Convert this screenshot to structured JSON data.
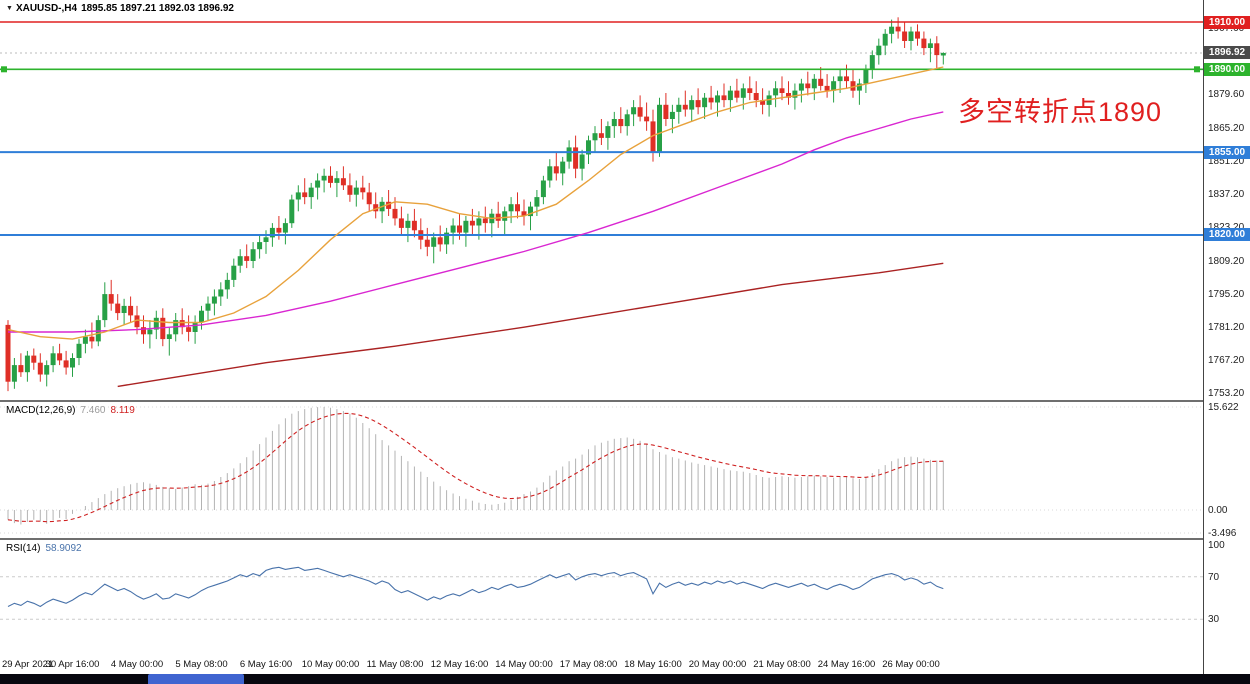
{
  "header": {
    "symbol": "XAUUSD-,H4",
    "ohlc": "1895.85 1897.21 1892.03 1896.92"
  },
  "annotation": {
    "text": "多空转折点1890",
    "color": "#e01f1f"
  },
  "current_price": {
    "price": 1896.92,
    "label": "1896.92",
    "badge_color": "#4a4a4a"
  },
  "levels": [
    {
      "price": 1910.0,
      "label": "1910.00",
      "color": "#e02020",
      "width": 1.4,
      "handles": false
    },
    {
      "price": 1890.0,
      "label": "1890.00",
      "color": "#2db32d",
      "width": 1.6,
      "handles": true
    },
    {
      "price": 1855.0,
      "label": "1855.00",
      "color": "#2f7ed8",
      "width": 2.0,
      "handles": false
    },
    {
      "price": 1820.0,
      "label": "1820.00",
      "color": "#2f7ed8",
      "width": 2.0,
      "handles": false
    }
  ],
  "price_axis_ticks": [
    "1907.60",
    "1879.60",
    "1865.20",
    "1851.20",
    "1837.20",
    "1823.20",
    "1809.20",
    "1795.20",
    "1781.20",
    "1767.20",
    "1753.20"
  ],
  "macd_panel": {
    "title": "MACD(12,26,9)",
    "value_main": "7.460",
    "value_signal": "8.119",
    "axis": [
      {
        "label": "15.622",
        "value": 15.622
      },
      {
        "label": "0.00",
        "value": 0
      },
      {
        "label": "-3.496",
        "value": -3.496
      }
    ],
    "max": 15.622,
    "min": -3.496
  },
  "rsi_panel": {
    "title": "RSI(14)",
    "value": "58.9092",
    "axis": [
      {
        "label": "100",
        "value": 100
      },
      {
        "label": "70",
        "value": 70
      },
      {
        "label": "30",
        "value": 30
      }
    ],
    "level_lines": [
      70,
      30
    ]
  },
  "time_axis": [
    {
      "label": "29 Apr 2021",
      "bar": 0
    },
    {
      "label": "30 Apr 16:00",
      "bar": 10
    },
    {
      "label": "4 May 00:00",
      "bar": 20
    },
    {
      "label": "5 May 08:00",
      "bar": 30
    },
    {
      "label": "6 May 16:00",
      "bar": 40
    },
    {
      "label": "10 May 00:00",
      "bar": 50
    },
    {
      "label": "11 May 08:00",
      "bar": 60
    },
    {
      "label": "12 May 16:00",
      "bar": 70
    },
    {
      "label": "14 May 00:00",
      "bar": 80
    },
    {
      "label": "17 May 08:00",
      "bar": 90
    },
    {
      "label": "18 May 16:00",
      "bar": 100
    },
    {
      "label": "20 May 00:00",
      "bar": 110
    },
    {
      "label": "21 May 08:00",
      "bar": 120
    },
    {
      "label": "24 May 16:00",
      "bar": 130
    },
    {
      "label": "26 May 00:00",
      "bar": 140
    }
  ],
  "chart_data": {
    "type": "candlestick",
    "symbol": "XAUUSD",
    "timeframe": "H4",
    "title": "XAUUSD-,H4",
    "visible_price_range": [
      1753.2,
      1910.0
    ],
    "candles": [
      [
        1782,
        1784,
        1754,
        1758
      ],
      [
        1758,
        1768,
        1755,
        1765
      ],
      [
        1765,
        1770,
        1760,
        1762
      ],
      [
        1762,
        1771,
        1758,
        1769
      ],
      [
        1769,
        1772,
        1763,
        1766
      ],
      [
        1766,
        1770,
        1758,
        1761
      ],
      [
        1761,
        1767,
        1756,
        1765
      ],
      [
        1765,
        1773,
        1762,
        1770
      ],
      [
        1770,
        1774,
        1765,
        1767
      ],
      [
        1767,
        1771,
        1761,
        1764
      ],
      [
        1764,
        1770,
        1760,
        1768
      ],
      [
        1768,
        1776,
        1765,
        1774
      ],
      [
        1774,
        1780,
        1770,
        1777
      ],
      [
        1777,
        1783,
        1772,
        1775
      ],
      [
        1775,
        1786,
        1773,
        1784
      ],
      [
        1784,
        1800,
        1781,
        1795
      ],
      [
        1795,
        1801,
        1788,
        1791
      ],
      [
        1791,
        1795,
        1784,
        1787
      ],
      [
        1787,
        1793,
        1782,
        1790
      ],
      [
        1790,
        1794,
        1783,
        1786
      ],
      [
        1786,
        1790,
        1778,
        1781
      ],
      [
        1781,
        1786,
        1774,
        1778
      ],
      [
        1778,
        1784,
        1772,
        1780
      ],
      [
        1780,
        1788,
        1776,
        1785
      ],
      [
        1785,
        1789,
        1773,
        1776
      ],
      [
        1776,
        1781,
        1769,
        1778
      ],
      [
        1778,
        1787,
        1775,
        1784
      ],
      [
        1784,
        1789,
        1778,
        1781
      ],
      [
        1781,
        1786,
        1775,
        1779
      ],
      [
        1779,
        1786,
        1774,
        1783
      ],
      [
        1783,
        1790,
        1780,
        1788
      ],
      [
        1788,
        1794,
        1784,
        1791
      ],
      [
        1791,
        1797,
        1786,
        1794
      ],
      [
        1794,
        1800,
        1790,
        1797
      ],
      [
        1797,
        1804,
        1793,
        1801
      ],
      [
        1801,
        1810,
        1798,
        1807
      ],
      [
        1807,
        1814,
        1804,
        1811
      ],
      [
        1811,
        1816,
        1806,
        1809
      ],
      [
        1809,
        1817,
        1806,
        1814
      ],
      [
        1814,
        1820,
        1810,
        1817
      ],
      [
        1817,
        1822,
        1812,
        1819
      ],
      [
        1819,
        1825,
        1815,
        1823
      ],
      [
        1823,
        1828,
        1818,
        1821
      ],
      [
        1821,
        1827,
        1816,
        1825
      ],
      [
        1825,
        1837,
        1823,
        1835
      ],
      [
        1835,
        1841,
        1830,
        1838
      ],
      [
        1838,
        1844,
        1833,
        1836
      ],
      [
        1836,
        1842,
        1831,
        1840
      ],
      [
        1840,
        1846,
        1835,
        1843
      ],
      [
        1843,
        1848,
        1838,
        1845
      ],
      [
        1845,
        1849,
        1840,
        1842
      ],
      [
        1842,
        1847,
        1836,
        1844
      ],
      [
        1844,
        1849,
        1839,
        1841
      ],
      [
        1841,
        1846,
        1834,
        1837
      ],
      [
        1837,
        1843,
        1832,
        1840
      ],
      [
        1840,
        1845,
        1835,
        1838
      ],
      [
        1838,
        1842,
        1830,
        1833
      ],
      [
        1833,
        1838,
        1827,
        1830
      ],
      [
        1830,
        1836,
        1825,
        1834
      ],
      [
        1834,
        1839,
        1828,
        1831
      ],
      [
        1831,
        1836,
        1824,
        1827
      ],
      [
        1827,
        1832,
        1820,
        1823
      ],
      [
        1823,
        1829,
        1817,
        1826
      ],
      [
        1826,
        1831,
        1819,
        1822
      ],
      [
        1822,
        1827,
        1814,
        1818
      ],
      [
        1818,
        1823,
        1811,
        1815
      ],
      [
        1815,
        1821,
        1808,
        1819
      ],
      [
        1819,
        1824,
        1813,
        1816
      ],
      [
        1816,
        1823,
        1812,
        1821
      ],
      [
        1821,
        1827,
        1816,
        1824
      ],
      [
        1824,
        1829,
        1818,
        1821
      ],
      [
        1821,
        1828,
        1815,
        1826
      ],
      [
        1826,
        1831,
        1820,
        1824
      ],
      [
        1824,
        1830,
        1818,
        1827
      ],
      [
        1827,
        1832,
        1821,
        1825
      ],
      [
        1825,
        1831,
        1819,
        1829
      ],
      [
        1829,
        1834,
        1823,
        1826
      ],
      [
        1826,
        1832,
        1820,
        1830
      ],
      [
        1830,
        1836,
        1825,
        1833
      ],
      [
        1833,
        1838,
        1827,
        1830
      ],
      [
        1830,
        1835,
        1824,
        1828
      ],
      [
        1828,
        1834,
        1822,
        1832
      ],
      [
        1832,
        1839,
        1828,
        1836
      ],
      [
        1836,
        1845,
        1833,
        1843
      ],
      [
        1843,
        1852,
        1840,
        1849
      ],
      [
        1849,
        1855,
        1843,
        1846
      ],
      [
        1846,
        1853,
        1841,
        1851
      ],
      [
        1851,
        1860,
        1848,
        1857
      ],
      [
        1857,
        1862,
        1844,
        1848
      ],
      [
        1848,
        1856,
        1843,
        1854
      ],
      [
        1854,
        1862,
        1850,
        1860
      ],
      [
        1860,
        1866,
        1855,
        1863
      ],
      [
        1863,
        1869,
        1858,
        1861
      ],
      [
        1861,
        1868,
        1856,
        1866
      ],
      [
        1866,
        1872,
        1861,
        1869
      ],
      [
        1869,
        1874,
        1863,
        1866
      ],
      [
        1866,
        1873,
        1862,
        1871
      ],
      [
        1871,
        1877,
        1866,
        1874
      ],
      [
        1874,
        1879,
        1868,
        1870
      ],
      [
        1870,
        1876,
        1864,
        1868
      ],
      [
        1868,
        1873,
        1851,
        1855
      ],
      [
        1855,
        1878,
        1853,
        1875
      ],
      [
        1875,
        1880,
        1866,
        1869
      ],
      [
        1869,
        1875,
        1863,
        1872
      ],
      [
        1872,
        1878,
        1867,
        1875
      ],
      [
        1875,
        1881,
        1870,
        1873
      ],
      [
        1873,
        1879,
        1868,
        1877
      ],
      [
        1877,
        1882,
        1871,
        1874
      ],
      [
        1874,
        1880,
        1869,
        1878
      ],
      [
        1878,
        1883,
        1873,
        1876
      ],
      [
        1876,
        1881,
        1870,
        1879
      ],
      [
        1879,
        1884,
        1874,
        1877
      ],
      [
        1877,
        1883,
        1872,
        1881
      ],
      [
        1881,
        1886,
        1876,
        1878
      ],
      [
        1878,
        1884,
        1873,
        1882
      ],
      [
        1882,
        1887,
        1877,
        1880
      ],
      [
        1880,
        1885,
        1874,
        1877
      ],
      [
        1877,
        1882,
        1871,
        1875
      ],
      [
        1875,
        1881,
        1870,
        1879
      ],
      [
        1879,
        1885,
        1874,
        1882
      ],
      [
        1882,
        1887,
        1877,
        1880
      ],
      [
        1880,
        1885,
        1875,
        1878
      ],
      [
        1878,
        1884,
        1873,
        1881
      ],
      [
        1881,
        1886,
        1876,
        1884
      ],
      [
        1884,
        1889,
        1879,
        1882
      ],
      [
        1882,
        1888,
        1877,
        1886
      ],
      [
        1886,
        1891,
        1881,
        1883
      ],
      [
        1883,
        1888,
        1878,
        1881
      ],
      [
        1881,
        1887,
        1876,
        1885
      ],
      [
        1885,
        1890,
        1880,
        1887
      ],
      [
        1887,
        1892,
        1882,
        1885
      ],
      [
        1885,
        1890,
        1878,
        1881
      ],
      [
        1881,
        1886,
        1875,
        1884
      ],
      [
        1884,
        1892,
        1880,
        1890
      ],
      [
        1890,
        1898,
        1886,
        1896
      ],
      [
        1896,
        1903,
        1892,
        1900
      ],
      [
        1900,
        1907,
        1896,
        1905
      ],
      [
        1905,
        1911,
        1901,
        1908
      ],
      [
        1908,
        1912,
        1903,
        1906
      ],
      [
        1906,
        1910,
        1899,
        1902
      ],
      [
        1902,
        1908,
        1898,
        1906
      ],
      [
        1906,
        1909,
        1900,
        1903
      ],
      [
        1903,
        1906,
        1896,
        1899
      ],
      [
        1899,
        1903,
        1893,
        1901
      ],
      [
        1901,
        1904,
        1890,
        1896
      ],
      [
        1895.85,
        1897.21,
        1892.03,
        1896.92
      ]
    ],
    "ma_orange": [
      [
        0,
        1780
      ],
      [
        5,
        1777
      ],
      [
        10,
        1776
      ],
      [
        15,
        1779
      ],
      [
        20,
        1784
      ],
      [
        25,
        1783
      ],
      [
        30,
        1783
      ],
      [
        35,
        1787
      ],
      [
        40,
        1794
      ],
      [
        45,
        1805
      ],
      [
        50,
        1818
      ],
      [
        55,
        1829
      ],
      [
        60,
        1834
      ],
      [
        65,
        1833
      ],
      [
        70,
        1829
      ],
      [
        75,
        1827
      ],
      [
        80,
        1828
      ],
      [
        85,
        1833
      ],
      [
        90,
        1843
      ],
      [
        95,
        1854
      ],
      [
        100,
        1862
      ],
      [
        105,
        1867
      ],
      [
        110,
        1872
      ],
      [
        115,
        1876
      ],
      [
        120,
        1878
      ],
      [
        125,
        1880
      ],
      [
        130,
        1882
      ],
      [
        135,
        1885
      ],
      [
        140,
        1888
      ],
      [
        145,
        1891
      ]
    ],
    "ma_magenta": [
      [
        0,
        1779
      ],
      [
        10,
        1779
      ],
      [
        20,
        1780
      ],
      [
        30,
        1782
      ],
      [
        40,
        1786
      ],
      [
        50,
        1792
      ],
      [
        60,
        1799
      ],
      [
        70,
        1806
      ],
      [
        80,
        1813
      ],
      [
        90,
        1821
      ],
      [
        100,
        1830
      ],
      [
        110,
        1840
      ],
      [
        120,
        1850
      ],
      [
        125,
        1856
      ],
      [
        130,
        1861
      ],
      [
        135,
        1865
      ],
      [
        140,
        1869
      ],
      [
        145,
        1872
      ]
    ],
    "ma_darkred": [
      [
        17,
        1756
      ],
      [
        40,
        1766
      ],
      [
        60,
        1773
      ],
      [
        80,
        1781
      ],
      [
        100,
        1790
      ],
      [
        120,
        1799
      ],
      [
        135,
        1804
      ],
      [
        145,
        1808
      ]
    ],
    "macd": [
      -1.5,
      -2.0,
      -2.2,
      -1.8,
      -1.5,
      -1.8,
      -2.1,
      -1.6,
      -1.2,
      -1.4,
      -0.6,
      0.0,
      0.6,
      1.2,
      1.8,
      2.4,
      2.9,
      3.3,
      3.6,
      3.9,
      4.1,
      4.2,
      4.0,
      3.8,
      3.5,
      3.3,
      3.2,
      3.4,
      3.6,
      3.9,
      3.8,
      4.0,
      4.4,
      5.0,
      5.6,
      6.3,
      7.1,
      8.0,
      9.0,
      10.0,
      11.0,
      12.0,
      13.0,
      13.9,
      14.6,
      15.0,
      15.3,
      15.5,
      15.6,
      15.622,
      15.5,
      15.3,
      15.0,
      14.6,
      14.0,
      13.2,
      12.4,
      11.5,
      10.6,
      9.8,
      9.0,
      8.2,
      7.4,
      6.6,
      5.8,
      5.0,
      4.3,
      3.6,
      3.0,
      2.5,
      2.1,
      1.7,
      1.4,
      1.1,
      0.9,
      0.8,
      0.9,
      1.1,
      1.5,
      2.0,
      2.4,
      2.8,
      3.4,
      4.2,
      5.2,
      6.0,
      6.6,
      7.4,
      7.8,
      8.4,
      9.2,
      9.8,
      10.2,
      10.5,
      10.8,
      10.9,
      11.0,
      10.8,
      10.5,
      10.0,
      9.2,
      8.8,
      8.4,
      8.0,
      7.8,
      7.5,
      7.2,
      7.0,
      6.8,
      6.6,
      6.4,
      6.2,
      6.0,
      5.9,
      5.8,
      5.6,
      5.3,
      5.0,
      4.9,
      5.0,
      5.1,
      5.0,
      4.9,
      5.0,
      5.1,
      5.2,
      5.1,
      5.0,
      4.9,
      5.0,
      5.0,
      4.8,
      4.7,
      5.0,
      5.6,
      6.2,
      6.8,
      7.4,
      7.8,
      8.0,
      8.1,
      8.0,
      7.8,
      7.6,
      7.5,
      7.46
    ],
    "rsi": [
      42,
      45,
      43,
      47,
      45,
      42,
      46,
      49,
      47,
      45,
      48,
      52,
      55,
      53,
      58,
      63,
      60,
      57,
      59,
      56,
      52,
      49,
      51,
      54,
      49,
      50,
      54,
      52,
      50,
      53,
      57,
      60,
      62,
      64,
      66,
      69,
      72,
      70,
      73,
      71,
      76,
      78,
      79,
      77,
      78,
      79,
      76,
      77,
      78,
      76,
      74,
      72,
      70,
      72,
      70,
      68,
      66,
      63,
      66,
      64,
      58,
      55,
      57,
      54,
      51,
      48,
      51,
      49,
      52,
      54,
      52,
      55,
      58,
      55,
      57,
      60,
      58,
      61,
      63,
      60,
      61,
      63,
      66,
      69,
      72,
      69,
      71,
      73,
      67,
      70,
      72,
      73,
      71,
      73,
      74,
      71,
      73,
      74,
      71,
      68,
      54,
      64,
      60,
      63,
      65,
      62,
      64,
      62,
      65,
      63,
      66,
      64,
      66,
      63,
      65,
      63,
      61,
      59,
      62,
      64,
      62,
      60,
      62,
      64,
      61,
      63,
      60,
      58,
      61,
      63,
      61,
      58,
      60,
      64,
      68,
      70,
      72,
      73,
      71,
      67,
      69,
      67,
      63,
      65,
      61,
      58.9
    ],
    "colors": {
      "candle_up": "#27a046",
      "candle_down": "#df2f26",
      "ma_orange": "#e8a23c",
      "ma_magenta": "#d926d1",
      "ma_darkred": "#aa2222",
      "macd_histogram": "#b3b3b3",
      "macd_signal": "#cf2020",
      "rsi_line": "#4872aa"
    }
  }
}
